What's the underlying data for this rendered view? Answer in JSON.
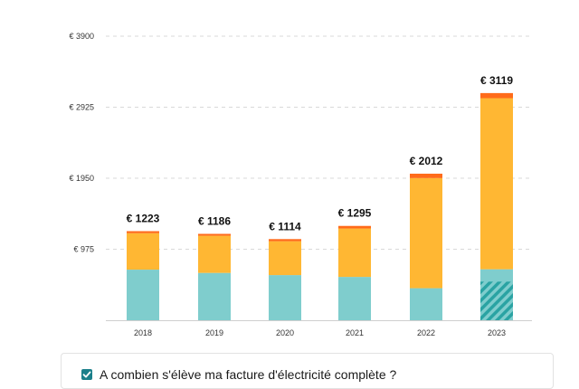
{
  "chart_data": {
    "type": "bar",
    "stacked": true,
    "currency_prefix": "€",
    "categories": [
      "2018",
      "2019",
      "2020",
      "2021",
      "2022",
      "2023"
    ],
    "series": [
      {
        "values": [
          695,
          650,
          620,
          595,
          440,
          700
        ],
        "color": "#7fcdcd"
      },
      {
        "values": [
          500,
          510,
          465,
          665,
          1512,
          2349
        ],
        "color": "#ffb733"
      },
      {
        "values": [
          28,
          26,
          29,
          35,
          60,
          70
        ],
        "color": "#ff6b1a"
      }
    ],
    "hatched_segment": {
      "category": "2023",
      "series_index": 0,
      "from": 0,
      "to": 530,
      "color": "#2aa3a3"
    },
    "totals": [
      "€ 1223",
      "€ 1186",
      "€ 1114",
      "€ 1295",
      "€ 2012",
      "€ 3119"
    ],
    "yticks": [
      975,
      1950,
      2925,
      3900
    ],
    "ytick_labels": [
      "€ 975",
      "€ 1950",
      "€ 2925",
      "€ 3900"
    ],
    "ylim": [
      0,
      3900
    ],
    "grid": true
  },
  "info_card": {
    "checked": true,
    "question": "A combien s'élève ma facture d'électricité complète ?"
  }
}
